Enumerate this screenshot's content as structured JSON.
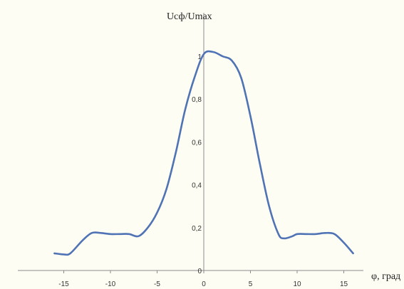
{
  "chart_data": {
    "type": "line",
    "title": "",
    "xlabel": "φ, град",
    "ylabel": "Uсф/Umax",
    "xlim": [
      -17,
      20
    ],
    "ylim": [
      0,
      1.2
    ],
    "x_ticks": [
      -15,
      -10,
      -5,
      0,
      5,
      10,
      15
    ],
    "x_tick_labels": [
      "-15",
      "-10",
      "-5",
      "0",
      "5",
      "10",
      "15"
    ],
    "y_ticks": [
      0,
      0.2,
      0.4,
      0.6,
      0.8,
      1
    ],
    "y_tick_labels": [
      "0",
      "0,2",
      "0,4",
      "0,6",
      "0,8",
      "1"
    ],
    "grid": false,
    "legend": "none",
    "colors": {
      "line": "#4f73b5",
      "axis": "#8c8c8c",
      "background": "#fefdf3"
    },
    "series": [
      {
        "x": [
          -16,
          -15,
          -14.3,
          -13,
          -12,
          -11,
          -10,
          -9,
          -8,
          -7,
          -6,
          -5,
          -4,
          -3,
          -2,
          -1,
          0,
          1,
          2,
          3,
          4,
          5,
          6,
          7,
          8,
          8.6,
          9.5,
          10,
          11,
          12,
          13,
          14,
          15,
          16
        ],
        "y": [
          0.08,
          0.075,
          0.08,
          0.14,
          0.175,
          0.175,
          0.17,
          0.17,
          0.17,
          0.16,
          0.2,
          0.27,
          0.38,
          0.55,
          0.75,
          0.9,
          1.01,
          1.02,
          1.0,
          0.98,
          0.9,
          0.72,
          0.5,
          0.3,
          0.17,
          0.15,
          0.16,
          0.17,
          0.17,
          0.17,
          0.175,
          0.17,
          0.13,
          0.08
        ]
      }
    ]
  }
}
